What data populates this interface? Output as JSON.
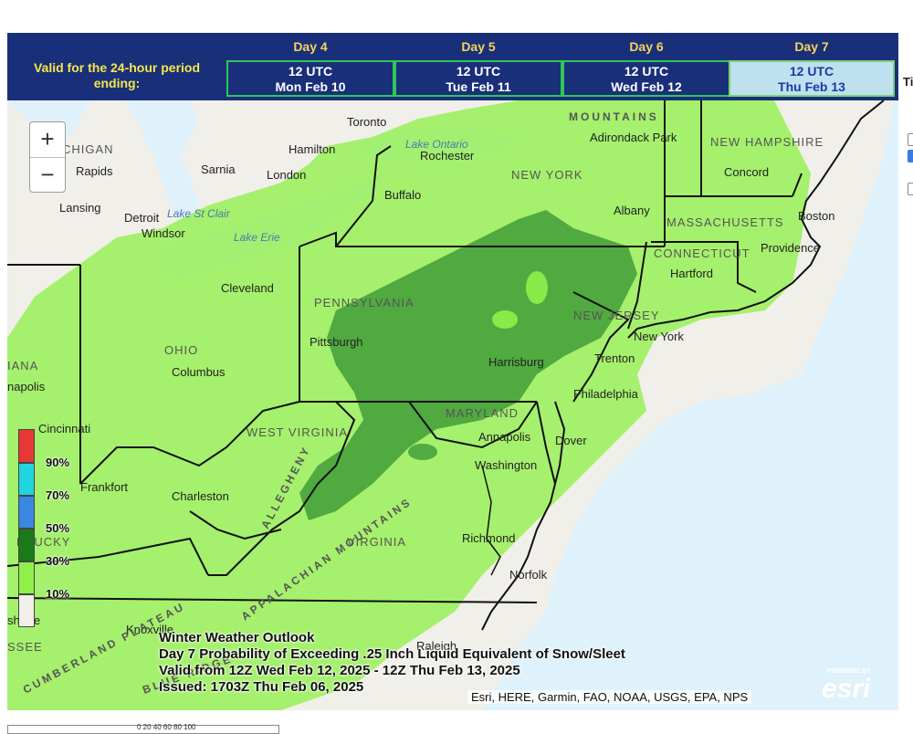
{
  "header": {
    "valid_label": "Valid for the 24-hour period ending:",
    "days": [
      {
        "title": "Day 4",
        "utc": "12 UTC",
        "date": "Mon Feb 10",
        "active": false
      },
      {
        "title": "Day 5",
        "utc": "12 UTC",
        "date": "Tue Feb 11",
        "active": false
      },
      {
        "title": "Day 6",
        "utc": "12 UTC",
        "date": "Wed Feb 12",
        "active": false
      },
      {
        "title": "Day 7",
        "utc": "12 UTC",
        "date": "Thu Feb 13",
        "active": true
      }
    ]
  },
  "side_panel": {
    "label": "Ti"
  },
  "zoom": {
    "in": "+",
    "out": "−"
  },
  "legend": {
    "items": [
      {
        "label": "90%",
        "color": "#e53935"
      },
      {
        "label": "70%",
        "color": "#22d3e0"
      },
      {
        "label": "50%",
        "color": "#3a86e0"
      },
      {
        "label": "30%",
        "color": "#1a7a1a"
      },
      {
        "label": "10%",
        "color": "#8ff04a"
      }
    ]
  },
  "map": {
    "places": {
      "toronto": "Toronto",
      "hamilton": "Hamilton",
      "sarnia": "Sarnia",
      "london": "London",
      "rapids": "Rapids",
      "michigan": "CHIGAN",
      "lansing": "Lansing",
      "detroit": "Detroit",
      "windsor": "Windsor",
      "buffalo": "Buffalo",
      "rochester": "Rochester",
      "albany": "Albany",
      "newyork_state": "NEW YORK",
      "mountains_label": "MOUNTAINS",
      "adirondack": "Adirondack Park",
      "concord": "Concord",
      "new_hampshire": "NEW HAMPSHIRE",
      "massachusetts": "MASSACHUSETTS",
      "boston": "Boston",
      "connecticut": "CONNECTICUT",
      "hartford": "Hartford",
      "providence": "Providence",
      "cleveland": "Cleveland",
      "pennsylvania": "PENNSYLVANIA",
      "pittsburgh": "Pittsburgh",
      "harrisburg": "Harrisburg",
      "new_jersey": "NEW JERSEY",
      "new_york_city": "New York",
      "trenton": "Trenton",
      "philadelphia": "Philadelphia",
      "ohio": "OHIO",
      "columbus": "Columbus",
      "indiana": "IANA",
      "indianapolis": "napolis",
      "cincinnati": "Cincinnati",
      "west_virginia": "WEST VIRGINIA",
      "charleston": "Charleston",
      "maryland": "MARYLAND",
      "annapolis": "Annapolis",
      "dover": "Dover",
      "washington": "Washington",
      "frankfort": "Frankfort",
      "kentucky": "NTUCKY",
      "virginia": "VIRGINIA",
      "richmond": "Richmond",
      "norfolk": "Norfolk",
      "knoxville": "Knoxville",
      "raleigh": "Raleigh",
      "nashville": "shville",
      "tennessee": "SSEE",
      "cumberland_plateau": "CUMBERLAND PLATEAU",
      "allegheny": "ALLEGHENY",
      "appalachian": "APPALACHIAN MOUNTAINS",
      "blue_ridge": "BLUE RIDGE",
      "lake_erie": "Lake Erie",
      "lake_ontario": "Lake Ontario",
      "lake_st_clair": "Lake St Clair"
    }
  },
  "caption": {
    "line1": "Winter Weather Outlook",
    "line2": "Day 7 Probability of Exceeding .25 Inch Liquid Equivalent of Snow/Sleet",
    "line3": "Valid from 12Z Wed Feb 12, 2025 - 12Z Thu Feb 13, 2025",
    "line4": "Issued: 1703Z Thu Feb 06, 2025"
  },
  "attribution": "Esri, HERE, Garmin, FAO, NOAA, USGS, EPA, NPS",
  "esri": {
    "powered": "POWERED BY",
    "logo": "esri"
  },
  "footer_ticks": "0 20 40 60 80 100",
  "colors": {
    "header_bg": "#1a2f7a",
    "prob_10_30": "#8ff04a",
    "prob_30_50": "#1a7a1a",
    "ocean": "#dff2fb",
    "land": "#f1efe9"
  }
}
